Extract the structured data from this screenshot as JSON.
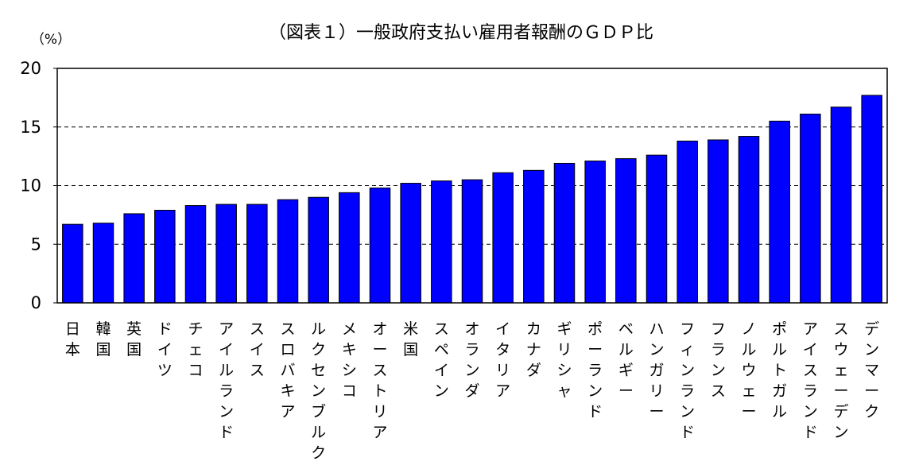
{
  "chart_data": {
    "type": "bar",
    "title": "（図表１）一般政府支払い雇用者報酬のＧＤＰ比",
    "unit_label": "（%）",
    "xlabel": "",
    "ylabel": "（%）",
    "ylim": [
      0,
      20
    ],
    "yticks": [
      0,
      5,
      10,
      15,
      20
    ],
    "ytick_labels": [
      "0",
      "5",
      "10",
      "15",
      "20"
    ],
    "grid": "dashed horizontal at 5, 10, 15",
    "bar_color": "#0000ff",
    "categories": [
      "日本",
      "韓国",
      "英国",
      "ドイツ",
      "チェコ",
      "アイルランド",
      "スイス",
      "スロバキア",
      "ルクセンブルク",
      "メキシコ",
      "オーストリア",
      "米国",
      "スペイン",
      "オランダ",
      "イタリア",
      "カナダ",
      "ギリシャ",
      "ポーランド",
      "ベルギー",
      "ハンガリー",
      "フィンランド",
      "フランス",
      "ノルウェー",
      "ポルトガル",
      "アイスランド",
      "スウェーデン",
      "デンマーク"
    ],
    "values": [
      6.7,
      6.8,
      7.6,
      7.9,
      8.3,
      8.4,
      8.4,
      8.8,
      9.0,
      9.4,
      9.8,
      10.2,
      10.4,
      10.5,
      11.1,
      11.3,
      11.9,
      12.1,
      12.3,
      12.6,
      13.8,
      13.9,
      14.2,
      15.5,
      16.1,
      16.7,
      17.7
    ]
  }
}
